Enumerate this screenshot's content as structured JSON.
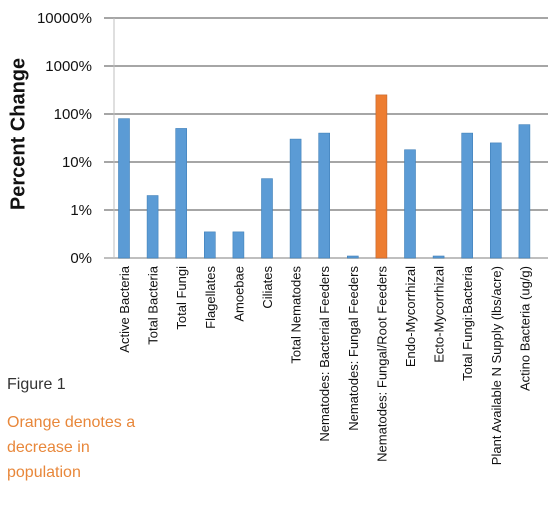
{
  "chart_data": {
    "type": "bar",
    "scale": "log",
    "ylabel": "Percent Change",
    "ylim": [
      1,
      10000
    ],
    "yticks": [
      {
        "value": 1,
        "label": "0%"
      },
      {
        "value": 10,
        "label": "1%"
      },
      {
        "value": 100,
        "label": "10%"
      },
      {
        "value": 1000,
        "label": "100%"
      },
      {
        "value": 10000,
        "label": "1000%"
      },
      {
        "value": 100000,
        "label": "10000%"
      }
    ],
    "categories": [
      "Active Bacteria",
      "Total Bacteria",
      "Total Fungi",
      "Flagellates",
      "Amoebae",
      "Ciliates",
      "Total Nematodes",
      "Nematodes: Bacterial Feeders",
      "Nematodes: Fungal Feeders",
      "Nematodes: Fungal/Root Feeders",
      "Endo-Mycorrhizal",
      "Ecto-Mycorrhizal",
      "Total Fungi:Bacteria",
      "Plant Available N Supply (lbs/acre)",
      "Actino Bacteria (ug/g)"
    ],
    "values": [
      800,
      20,
      500,
      3.5,
      3.5,
      45,
      300,
      400,
      1,
      2500,
      180,
      1,
      400,
      250,
      600
    ],
    "highlight_index": 9,
    "colors": {
      "bar": "#5b9bd5",
      "highlight": "#ed7d31",
      "grid": "#a6a6a6"
    },
    "grid": true
  },
  "figure_label": "Figure 1",
  "note": "Orange denotes a decrease in population"
}
